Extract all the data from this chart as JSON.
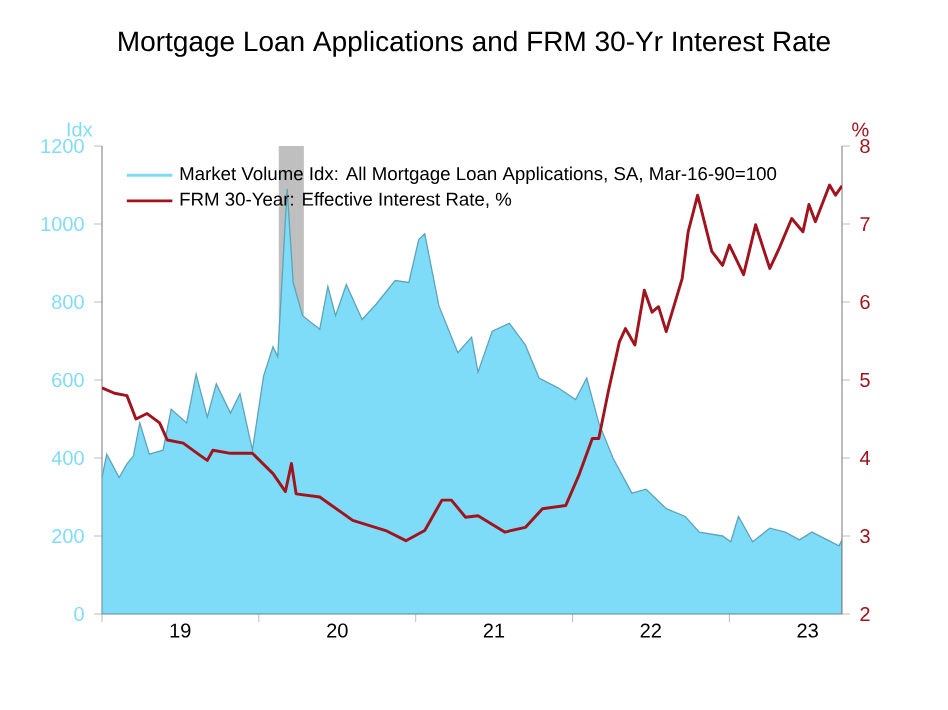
{
  "chart_data": {
    "type": "area",
    "title": "Mortgage Loan Applications and FRM 30-Yr Interest Rate",
    "ylabel": "Idx",
    "y2label": "%",
    "xlim": [
      "2019-01-01",
      "2023-09-20"
    ],
    "xticks": [
      {
        "value": "2019-01-01",
        "label": null
      },
      {
        "value": "2020-01-01",
        "label": null
      },
      {
        "value": "2021-01-01",
        "label": null
      },
      {
        "value": "2022-01-01",
        "label": null
      },
      {
        "value": "2023-01-01",
        "label": null
      },
      {
        "value": "2019-07-02",
        "label": "19"
      },
      {
        "value": "2020-07-02",
        "label": "20"
      },
      {
        "value": "2021-07-02",
        "label": "21"
      },
      {
        "value": "2022-07-02",
        "label": "22"
      },
      {
        "value": "2023-07-02",
        "label": "23"
      }
    ],
    "ylim": [
      0,
      1200
    ],
    "yticks": [
      0,
      200,
      400,
      600,
      800,
      1000,
      1200
    ],
    "y2lim": [
      2,
      8
    ],
    "y2ticks": [
      2,
      3,
      4,
      5,
      6,
      7,
      8
    ],
    "grid": false,
    "legend": "top left",
    "bands": [
      {
        "axis": "x",
        "from": "2020-02-16",
        "to": "2020-04-15",
        "color": "#bfbfbf"
      }
    ],
    "series": [
      {
        "name": "Market Volume Idx: All Mortgage Loan Applications, SA, Mar-16-90=100",
        "color": "#7fdcf8",
        "x": [
          "2019-01-01",
          "2019-01-12",
          "2019-02-10",
          "2019-02-28",
          "2019-03-15",
          "2019-03-30",
          "2019-04-21",
          "2019-05-23",
          "2019-06-11",
          "2019-07-17",
          "2019-08-08",
          "2019-09-03",
          "2019-09-24",
          "2019-10-27",
          "2019-11-18",
          "2019-12-17",
          "2020-01-12",
          "2020-02-03",
          "2020-02-14",
          "2020-03-07",
          "2020-03-21",
          "2020-04-12",
          "2020-05-22",
          "2020-06-10",
          "2020-06-28",
          "2020-07-23",
          "2020-08-29",
          "2020-10-01",
          "2020-11-14",
          "2020-12-16",
          "2021-01-08",
          "2021-01-22",
          "2021-02-24",
          "2021-04-09",
          "2021-05-11",
          "2021-05-26",
          "2021-06-28",
          "2021-08-07",
          "2021-09-13",
          "2021-10-15",
          "2021-11-28",
          "2022-01-08",
          "2022-02-03",
          "2022-03-03",
          "2022-04-05",
          "2022-05-19",
          "2022-06-21",
          "2022-08-07",
          "2022-09-20",
          "2022-10-23",
          "2022-12-16",
          "2023-01-04",
          "2023-01-22",
          "2023-02-24",
          "2023-04-05",
          "2023-05-11",
          "2023-06-13",
          "2023-07-12",
          "2023-09-13",
          "2023-09-20"
        ],
        "values": [
          350,
          410,
          350,
          385,
          405,
          490,
          410,
          420,
          525,
          490,
          615,
          505,
          590,
          515,
          565,
          420,
          610,
          685,
          660,
          1090,
          850,
          765,
          730,
          840,
          765,
          845,
          755,
          795,
          855,
          850,
          960,
          975,
          790,
          670,
          710,
          620,
          725,
          745,
          690,
          605,
          580,
          550,
          605,
          490,
          400,
          310,
          320,
          270,
          250,
          210,
          200,
          185,
          250,
          185,
          220,
          210,
          190,
          210,
          175,
          190
        ]
      },
      {
        "name": "FRM 30-Year: Effective Interest Rate, %",
        "type": "line",
        "axis": "y2",
        "color": "#a0141e",
        "x": [
          "2019-01-01",
          "2019-01-30",
          "2019-02-28",
          "2019-03-21",
          "2019-04-16",
          "2019-05-15",
          "2019-06-02",
          "2019-07-09",
          "2019-08-18",
          "2019-09-03",
          "2019-09-16",
          "2019-10-27",
          "2019-12-17",
          "2020-02-03",
          "2020-03-03",
          "2020-03-17",
          "2020-03-28",
          "2020-05-22",
          "2020-08-07",
          "2020-10-23",
          "2020-12-09",
          "2021-01-22",
          "2021-03-03",
          "2021-03-25",
          "2021-04-27",
          "2021-05-26",
          "2021-07-27",
          "2021-09-13",
          "2021-10-23",
          "2021-12-16",
          "2022-01-15",
          "2022-02-16",
          "2022-03-03",
          "2022-03-25",
          "2022-04-20",
          "2022-05-04",
          "2022-05-26",
          "2022-06-17",
          "2022-07-05",
          "2022-07-20",
          "2022-08-07",
          "2022-09-13",
          "2022-09-27",
          "2022-10-19",
          "2022-11-21",
          "2022-12-16",
          "2023-01-01",
          "2023-02-03",
          "2023-03-03",
          "2023-04-05",
          "2023-04-27",
          "2023-05-26",
          "2023-06-21",
          "2023-07-05",
          "2023-07-20",
          "2023-08-22",
          "2023-09-05",
          "2023-09-20"
        ],
        "values": [
          4.9,
          4.83,
          4.8,
          4.5,
          4.57,
          4.45,
          4.23,
          4.19,
          4.03,
          3.97,
          4.1,
          4.06,
          4.06,
          3.8,
          3.57,
          3.93,
          3.54,
          3.5,
          3.2,
          3.07,
          2.94,
          3.07,
          3.46,
          3.46,
          3.24,
          3.26,
          3.05,
          3.11,
          3.35,
          3.39,
          3.77,
          4.25,
          4.25,
          4.85,
          5.49,
          5.66,
          5.45,
          6.15,
          5.87,
          5.94,
          5.62,
          6.3,
          6.9,
          7.37,
          6.65,
          6.47,
          6.73,
          6.35,
          6.99,
          6.43,
          6.69,
          7.07,
          6.9,
          7.25,
          7.03,
          7.5,
          7.37,
          7.49
        ]
      }
    ]
  }
}
